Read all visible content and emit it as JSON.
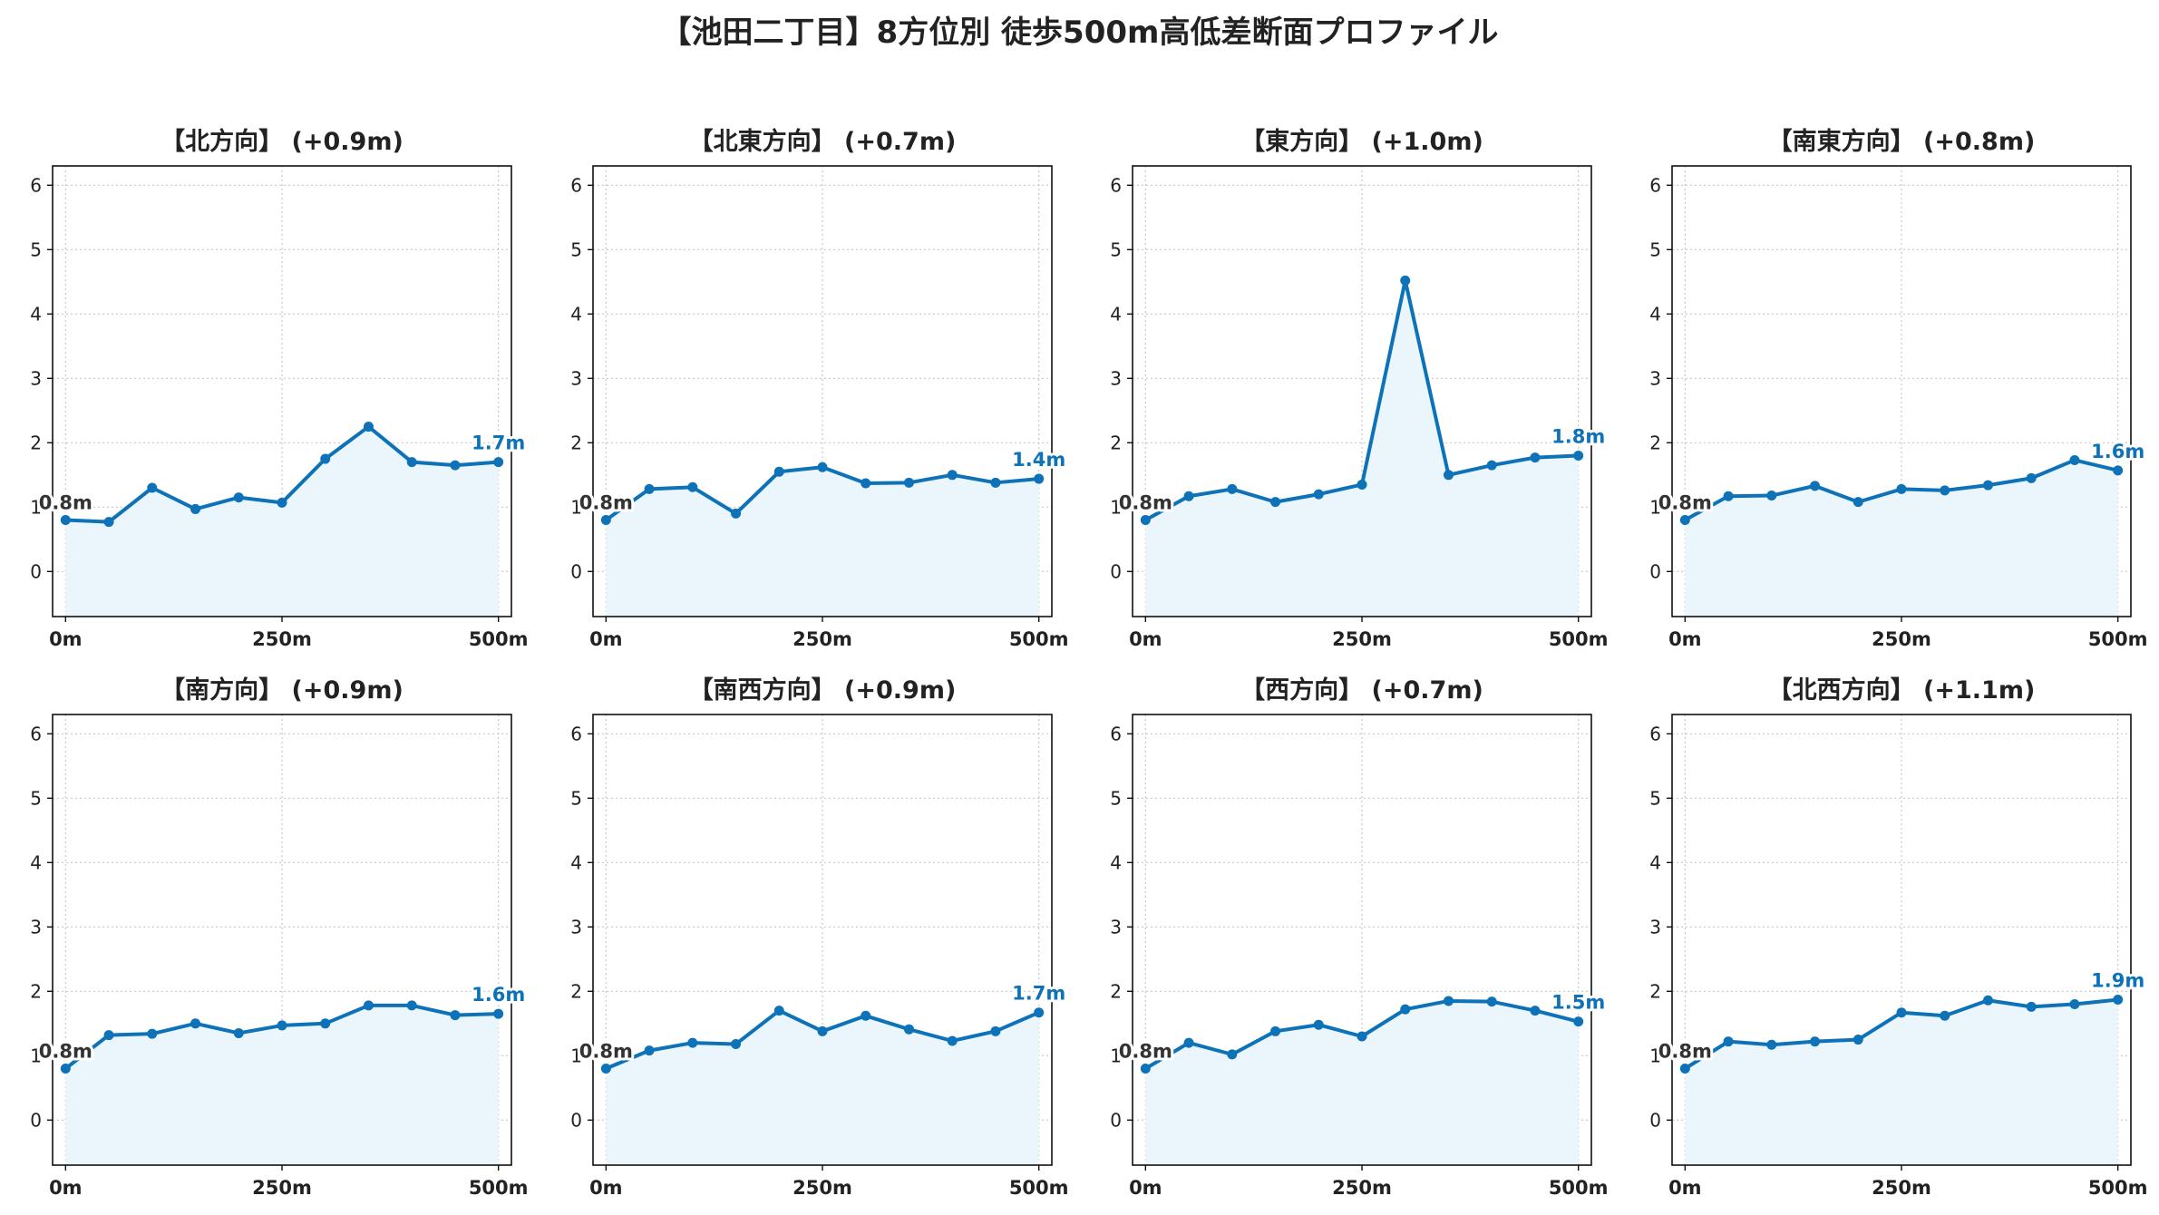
{
  "figure": {
    "title": "【池田二丁目】8方位別 徒歩500m高低差断面プロファイル"
  },
  "colors": {
    "line": "#0d72b7",
    "fill": "#eaf6fc",
    "grid": "#c8c8c8",
    "start_label": "#333333"
  },
  "chart_data": [
    {
      "type": "area",
      "title": "【北方向】 (+0.9m)",
      "x": [
        0,
        50,
        100,
        150,
        200,
        250,
        300,
        350,
        400,
        450,
        500
      ],
      "y": [
        0.8,
        0.77,
        1.3,
        0.97,
        1.15,
        1.07,
        1.75,
        2.25,
        1.7,
        1.65,
        1.7
      ],
      "start_label": "0.8m",
      "end_label": "1.7m",
      "xlim": [
        -15,
        515
      ],
      "ylim": [
        -0.7,
        6.3
      ],
      "yticks": [
        "0",
        "1",
        "2",
        "3",
        "4",
        "5",
        "6"
      ],
      "xticks": [
        "0m",
        "250m",
        "500m"
      ],
      "grid": true
    },
    {
      "type": "area",
      "title": "【北東方向】 (+0.7m)",
      "x": [
        0,
        50,
        100,
        150,
        200,
        250,
        300,
        350,
        400,
        450,
        500
      ],
      "y": [
        0.8,
        1.28,
        1.31,
        0.9,
        1.55,
        1.62,
        1.37,
        1.38,
        1.5,
        1.38,
        1.44
      ],
      "start_label": "0.8m",
      "end_label": "1.4m",
      "xlim": [
        -15,
        515
      ],
      "ylim": [
        -0.7,
        6.3
      ],
      "yticks": [
        "0",
        "1",
        "2",
        "3",
        "4",
        "5",
        "6"
      ],
      "xticks": [
        "0m",
        "250m",
        "500m"
      ],
      "grid": true
    },
    {
      "type": "area",
      "title": "【東方向】 (+1.0m)",
      "x": [
        0,
        50,
        100,
        150,
        200,
        250,
        300,
        350,
        400,
        450,
        500
      ],
      "y": [
        0.8,
        1.17,
        1.28,
        1.08,
        1.2,
        1.35,
        4.52,
        1.5,
        1.65,
        1.77,
        1.8
      ],
      "start_label": "0.8m",
      "end_label": "1.8m",
      "xlim": [
        -15,
        515
      ],
      "ylim": [
        -0.7,
        6.3
      ],
      "yticks": [
        "0",
        "1",
        "2",
        "3",
        "4",
        "5",
        "6"
      ],
      "xticks": [
        "0m",
        "250m",
        "500m"
      ],
      "grid": true
    },
    {
      "type": "area",
      "title": "【南東方向】 (+0.8m)",
      "x": [
        0,
        50,
        100,
        150,
        200,
        250,
        300,
        350,
        400,
        450,
        500
      ],
      "y": [
        0.8,
        1.17,
        1.18,
        1.33,
        1.08,
        1.28,
        1.26,
        1.34,
        1.45,
        1.73,
        1.57
      ],
      "start_label": "0.8m",
      "end_label": "1.6m",
      "xlim": [
        -15,
        515
      ],
      "ylim": [
        -0.7,
        6.3
      ],
      "yticks": [
        "0",
        "1",
        "2",
        "3",
        "4",
        "5",
        "6"
      ],
      "xticks": [
        "0m",
        "250m",
        "500m"
      ],
      "grid": true
    },
    {
      "type": "area",
      "title": "【南方向】 (+0.9m)",
      "x": [
        0,
        50,
        100,
        150,
        200,
        250,
        300,
        350,
        400,
        450,
        500
      ],
      "y": [
        0.8,
        1.32,
        1.34,
        1.5,
        1.35,
        1.47,
        1.5,
        1.78,
        1.78,
        1.63,
        1.65
      ],
      "start_label": "0.8m",
      "end_label": "1.6m",
      "xlim": [
        -15,
        515
      ],
      "ylim": [
        -0.7,
        6.3
      ],
      "yticks": [
        "0",
        "1",
        "2",
        "3",
        "4",
        "5",
        "6"
      ],
      "xticks": [
        "0m",
        "250m",
        "500m"
      ],
      "grid": true
    },
    {
      "type": "area",
      "title": "【南西方向】 (+0.9m)",
      "x": [
        0,
        50,
        100,
        150,
        200,
        250,
        300,
        350,
        400,
        450,
        500
      ],
      "y": [
        0.8,
        1.08,
        1.2,
        1.18,
        1.7,
        1.38,
        1.62,
        1.41,
        1.23,
        1.38,
        1.67
      ],
      "start_label": "0.8m",
      "end_label": "1.7m",
      "xlim": [
        -15,
        515
      ],
      "ylim": [
        -0.7,
        6.3
      ],
      "yticks": [
        "0",
        "1",
        "2",
        "3",
        "4",
        "5",
        "6"
      ],
      "xticks": [
        "0m",
        "250m",
        "500m"
      ],
      "grid": true
    },
    {
      "type": "area",
      "title": "【西方向】 (+0.7m)",
      "x": [
        0,
        50,
        100,
        150,
        200,
        250,
        300,
        350,
        400,
        450,
        500
      ],
      "y": [
        0.8,
        1.2,
        1.02,
        1.38,
        1.48,
        1.3,
        1.72,
        1.85,
        1.84,
        1.7,
        1.53
      ],
      "start_label": "0.8m",
      "end_label": "1.5m",
      "xlim": [
        -15,
        515
      ],
      "ylim": [
        -0.7,
        6.3
      ],
      "yticks": [
        "0",
        "1",
        "2",
        "3",
        "4",
        "5",
        "6"
      ],
      "xticks": [
        "0m",
        "250m",
        "500m"
      ],
      "grid": true
    },
    {
      "type": "area",
      "title": "【北西方向】 (+1.1m)",
      "x": [
        0,
        50,
        100,
        150,
        200,
        250,
        300,
        350,
        400,
        450,
        500
      ],
      "y": [
        0.8,
        1.22,
        1.17,
        1.22,
        1.25,
        1.67,
        1.62,
        1.86,
        1.76,
        1.8,
        1.87
      ],
      "start_label": "0.8m",
      "end_label": "1.9m",
      "xlim": [
        -15,
        515
      ],
      "ylim": [
        -0.7,
        6.3
      ],
      "yticks": [
        "0",
        "1",
        "2",
        "3",
        "4",
        "5",
        "6"
      ],
      "xticks": [
        "0m",
        "250m",
        "500m"
      ],
      "grid": true
    }
  ]
}
